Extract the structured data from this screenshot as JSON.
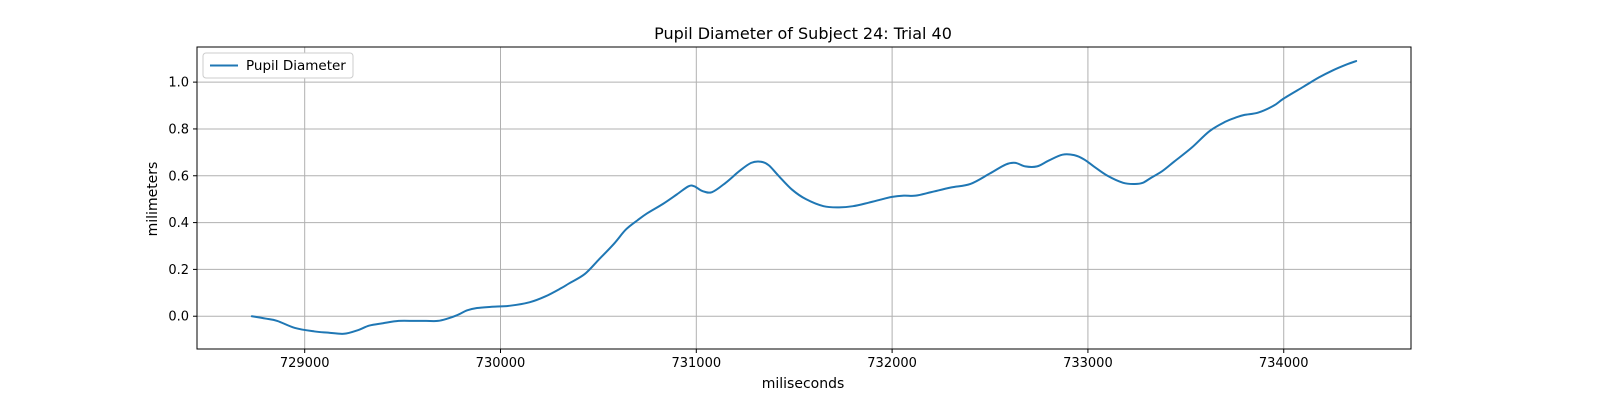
{
  "chart_data": {
    "type": "line",
    "title": "Pupil Diameter of Subject 24: Trial 40",
    "xlabel": "miliseconds",
    "ylabel": "milimeters",
    "xlim": [
      728450,
      734650
    ],
    "ylim": [
      -0.14,
      1.15
    ],
    "x_ticks": [
      729000,
      730000,
      731000,
      732000,
      733000,
      734000
    ],
    "y_ticks": [
      0.0,
      0.2,
      0.4,
      0.6,
      0.8,
      1.0
    ],
    "x_tick_labels": [
      "729000",
      "730000",
      "731000",
      "732000",
      "733000",
      "734000"
    ],
    "y_tick_labels": [
      "0.0",
      "0.2",
      "0.4",
      "0.6",
      "0.8",
      "1.0"
    ],
    "grid": true,
    "legend_position": "top-left",
    "series": [
      {
        "name": "Pupil Diameter",
        "color": "#1f77b4",
        "x": [
          728730,
          728800,
          728860,
          728950,
          729050,
          729120,
          729200,
          729270,
          729330,
          729400,
          729480,
          729560,
          729620,
          729680,
          729730,
          729780,
          729830,
          729880,
          729950,
          730050,
          730150,
          730230,
          730310,
          730350,
          730430,
          730500,
          730580,
          730640,
          730700,
          730750,
          730830,
          730900,
          730960,
          730990,
          731030,
          731080,
          731150,
          731220,
          731280,
          731330,
          731370,
          731420,
          731490,
          731560,
          731650,
          731730,
          731800,
          731880,
          731950,
          732000,
          732060,
          732120,
          732200,
          732300,
          732400,
          732500,
          732580,
          732630,
          732680,
          732740,
          732800,
          732870,
          732930,
          732980,
          733030,
          733100,
          733180,
          733240,
          733280,
          733320,
          733380,
          733440,
          733530,
          733620,
          733700,
          733760,
          733800,
          733870,
          733950,
          734000,
          734100,
          734180,
          734250,
          734320,
          734370
        ],
        "y": [
          0.0,
          -0.01,
          -0.02,
          -0.05,
          -0.065,
          -0.07,
          -0.075,
          -0.06,
          -0.04,
          -0.03,
          -0.02,
          -0.02,
          -0.02,
          -0.02,
          -0.01,
          0.005,
          0.025,
          0.035,
          0.04,
          0.045,
          0.06,
          0.085,
          0.12,
          0.14,
          0.18,
          0.24,
          0.31,
          0.37,
          0.41,
          0.44,
          0.48,
          0.52,
          0.555,
          0.555,
          0.535,
          0.53,
          0.57,
          0.62,
          0.655,
          0.66,
          0.645,
          0.6,
          0.54,
          0.5,
          0.47,
          0.465,
          0.47,
          0.485,
          0.5,
          0.51,
          0.515,
          0.515,
          0.53,
          0.55,
          0.565,
          0.61,
          0.648,
          0.655,
          0.64,
          0.64,
          0.665,
          0.69,
          0.688,
          0.67,
          0.64,
          0.6,
          0.57,
          0.565,
          0.57,
          0.59,
          0.62,
          0.66,
          0.72,
          0.79,
          0.83,
          0.85,
          0.86,
          0.87,
          0.9,
          0.93,
          0.98,
          1.02,
          1.05,
          1.075,
          1.09
        ]
      }
    ]
  }
}
